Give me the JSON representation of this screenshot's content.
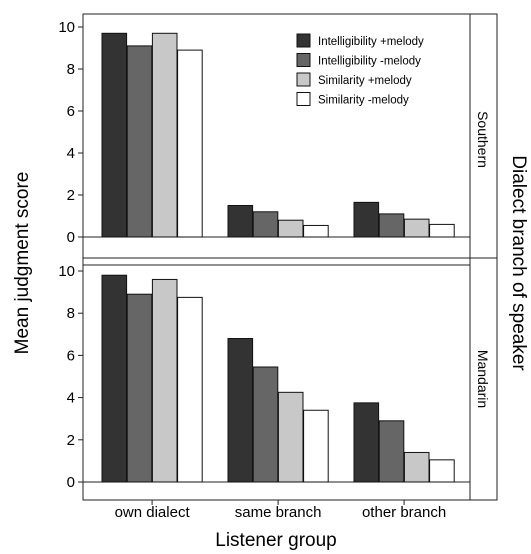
{
  "chart_data": {
    "type": "bar",
    "xlabel": "Listener group",
    "ylabel": "Mean judgment score",
    "facet_label": "Dialect branch of speaker",
    "categories": [
      "own dialect",
      "same branch",
      "other branch"
    ],
    "ylim": [
      0,
      10
    ],
    "yticks": [
      "0",
      "2",
      "4",
      "6",
      "8",
      "10"
    ],
    "legend_placement": "top-right of upper panel",
    "series": [
      {
        "name": "Intelligibility +melody",
        "color": "#333333"
      },
      {
        "name": "Intelligibility -melody",
        "color": "#666666"
      },
      {
        "name": "Similarity +melody",
        "color": "#c8c8c8"
      },
      {
        "name": "Similarity -melody",
        "color": "#ffffff"
      }
    ],
    "panels": [
      {
        "name": "Southern",
        "values": [
          [
            9.7,
            1.5,
            1.65
          ],
          [
            9.1,
            1.2,
            1.1
          ],
          [
            9.7,
            0.8,
            0.85
          ],
          [
            8.9,
            0.55,
            0.6
          ]
        ]
      },
      {
        "name": "Mandarin",
        "values": [
          [
            9.8,
            6.8,
            3.75
          ],
          [
            8.9,
            5.45,
            2.9
          ],
          [
            9.6,
            4.25,
            1.4
          ],
          [
            8.75,
            3.4,
            1.05
          ]
        ]
      }
    ]
  }
}
